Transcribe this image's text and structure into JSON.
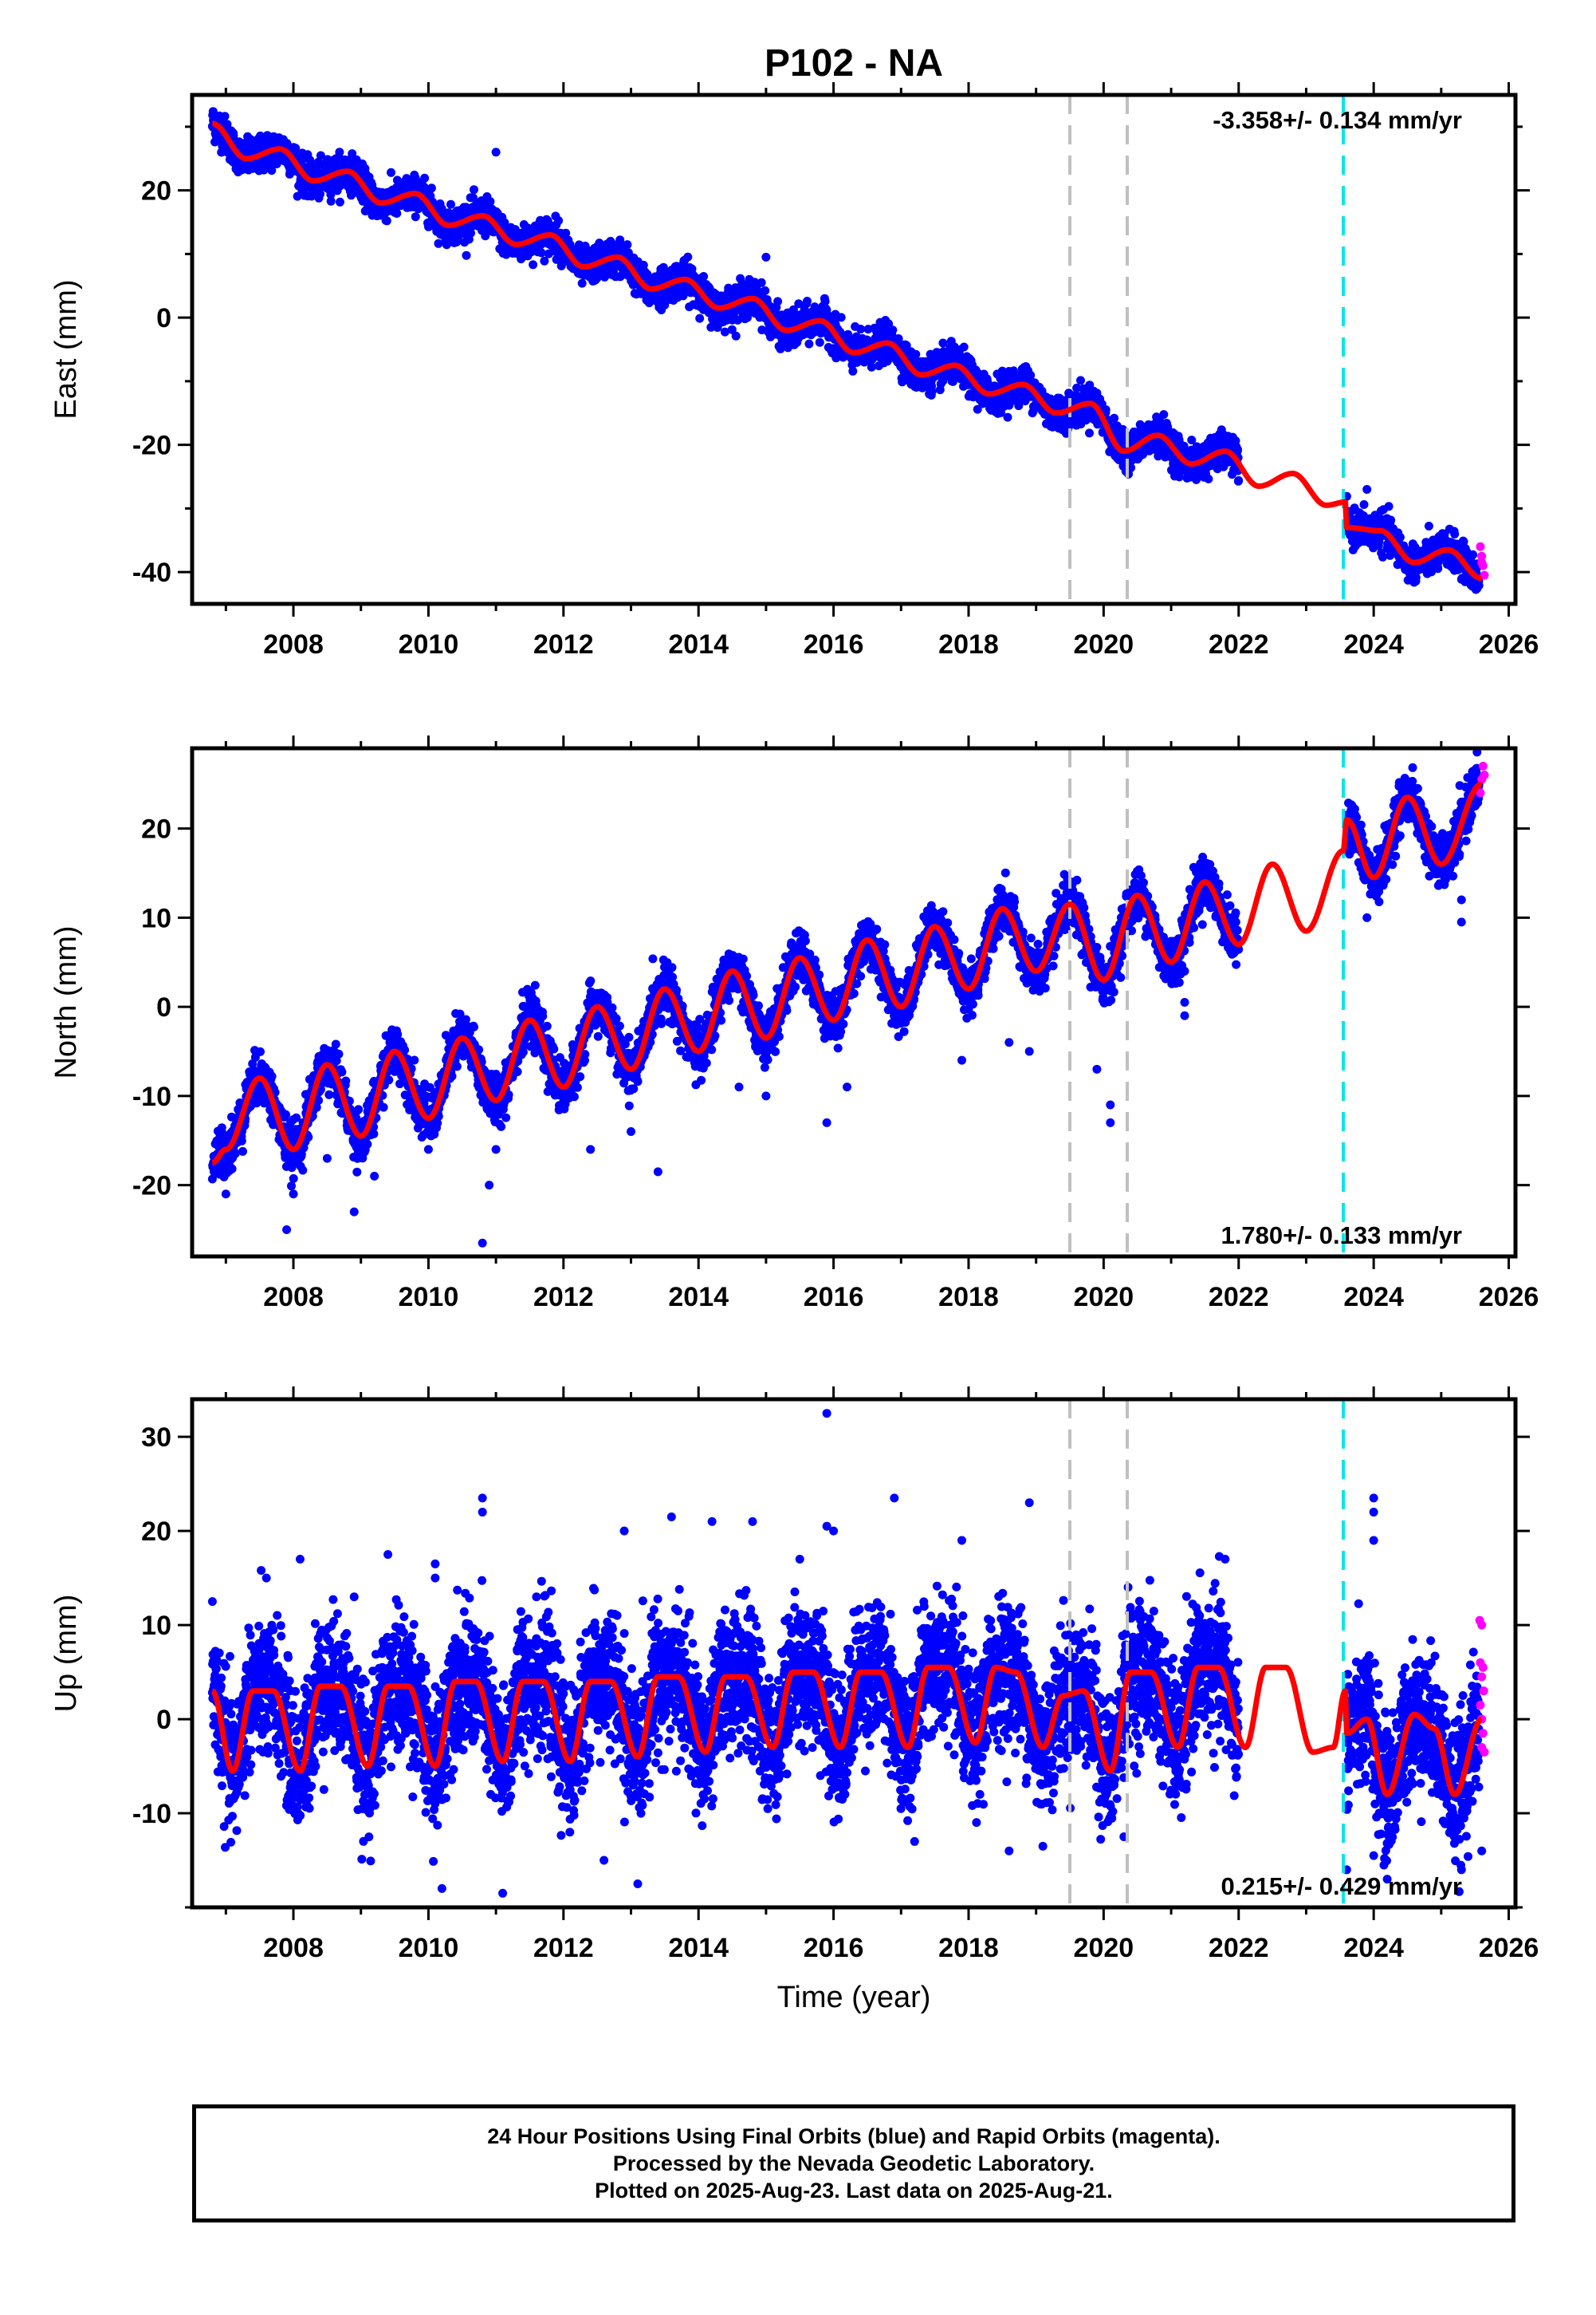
{
  "title": "P102 - NA",
  "colors": {
    "final_orbits": "#0000ff",
    "rapid_orbits": "#ff00ff",
    "model": "#ff0000",
    "gray_marker": "#c0c0c0",
    "cyan_marker": "#00e5ee",
    "frame": "#000000"
  },
  "chart_data": [
    {
      "type": "scatter",
      "ylabel": "East (mm)",
      "xlabel": "",
      "xlim": [
        2006.5,
        2026.1
      ],
      "ylim": [
        -45,
        35
      ],
      "x_ticks": [
        2008,
        2010,
        2012,
        2014,
        2016,
        2018,
        2020,
        2022,
        2024,
        2026
      ],
      "y_ticks": [
        -40,
        -20,
        0,
        20
      ],
      "rate_text": "-3.358+/- 0.134 mm/yr",
      "rate_position": "top-right",
      "grid": false,
      "series": [
        {
          "model": {
            "x": [
              2006.8,
              2007.3,
              2007.8,
              2008.3,
              2008.8,
              2009.3,
              2009.8,
              2010.3,
              2010.8,
              2011.3,
              2011.8,
              2012.3,
              2012.8,
              2013.3,
              2013.8,
              2014.3,
              2014.8,
              2015.3,
              2015.8,
              2016.3,
              2016.8,
              2017.3,
              2017.8,
              2018.3,
              2018.8,
              2019.3,
              2019.8,
              2020.3,
              2020.8,
              2021.3,
              2021.8,
              2022.3,
              2022.8,
              2023.3,
              2023.58,
              2023.6,
              2024.1,
              2024.6,
              2025.1,
              2025.6
            ],
            "y": [
              30.5,
              25.0,
              26.5,
              21.5,
              23.0,
              18.0,
              19.5,
              14.5,
              16.0,
              11.5,
              13.0,
              8.0,
              9.5,
              4.5,
              6.0,
              1.5,
              3.0,
              -2.0,
              -0.5,
              -5.5,
              -4.0,
              -9.0,
              -7.5,
              -12.0,
              -10.5,
              -15.0,
              -13.5,
              -21.0,
              -18.5,
              -23.0,
              -21.0,
              -26.5,
              -24.5,
              -29.5,
              -29.0,
              -33.0,
              -33.5,
              -38.5,
              -36.5,
              -41.0
            ]
          },
          "envelope": 2.5,
          "data_end_1": 2022.0,
          "data_start_2": 2023.6,
          "outliers": [
            [
              2011.0,
              26.0
            ],
            [
              2015.0,
              9.5
            ],
            [
              2019.8,
              -13.0
            ],
            [
              2023.9,
              -27.0
            ]
          ],
          "rapid": [
            [
              2025.58,
              -36.0
            ],
            [
              2025.6,
              -37.5
            ],
            [
              2025.62,
              -39.0
            ],
            [
              2025.64,
              -40.5
            ],
            [
              2025.6,
              -38.5
            ]
          ]
        }
      ]
    },
    {
      "type": "scatter",
      "ylabel": "North (mm)",
      "xlabel": "",
      "xlim": [
        2006.5,
        2026.1
      ],
      "ylim": [
        -28,
        29
      ],
      "x_ticks": [
        2008,
        2010,
        2012,
        2014,
        2016,
        2018,
        2020,
        2022,
        2024,
        2026
      ],
      "y_ticks": [
        -20,
        -10,
        0,
        10,
        20
      ],
      "rate_text": "1.780+/- 0.133 mm/yr",
      "rate_position": "bottom-right",
      "grid": false,
      "series": [
        {
          "model": {
            "x": [
              2006.8,
              2007.0,
              2007.5,
              2008.0,
              2008.5,
              2009.0,
              2009.5,
              2010.0,
              2010.5,
              2011.0,
              2011.5,
              2012.0,
              2012.5,
              2013.0,
              2013.5,
              2014.0,
              2014.5,
              2015.0,
              2015.5,
              2016.0,
              2016.5,
              2017.0,
              2017.5,
              2018.0,
              2018.5,
              2019.0,
              2019.5,
              2020.0,
              2020.5,
              2021.0,
              2021.5,
              2022.0,
              2022.5,
              2023.0,
              2023.55,
              2023.6,
              2024.0,
              2024.5,
              2025.0,
              2025.6
            ],
            "y": [
              -17.5,
              -16.0,
              -8.0,
              -16.0,
              -6.5,
              -14.5,
              -5.0,
              -12.5,
              -3.5,
              -10.5,
              -1.5,
              -9.0,
              0.0,
              -7.0,
              2.0,
              -5.0,
              4.0,
              -3.5,
              5.5,
              -1.5,
              7.5,
              0.0,
              9.0,
              2.0,
              11.0,
              4.0,
              11.5,
              3.0,
              12.5,
              5.0,
              14.0,
              7.0,
              16.0,
              8.5,
              17.5,
              21.0,
              14.5,
              23.5,
              16.0,
              25.0
            ]
          },
          "envelope": 2.5,
          "data_end_1": 2022.0,
          "data_start_2": 2023.6,
          "outliers": [
            [
              2007.0,
              -21.0
            ],
            [
              2007.9,
              -25.0
            ],
            [
              2008.0,
              -21.0
            ],
            [
              2008.5,
              -17.0
            ],
            [
              2008.9,
              -23.0
            ],
            [
              2009.2,
              -19.0
            ],
            [
              2010.0,
              -16.0
            ],
            [
              2010.8,
              -26.5
            ],
            [
              2010.9,
              -20.0
            ],
            [
              2011.0,
              -16.0
            ],
            [
              2012.4,
              -16.0
            ],
            [
              2013.0,
              -14.0
            ],
            [
              2013.4,
              -18.5
            ],
            [
              2014.6,
              -9.0
            ],
            [
              2015.0,
              -10.0
            ],
            [
              2015.9,
              -13.0
            ],
            [
              2016.2,
              -9.0
            ],
            [
              2017.9,
              -6.0
            ],
            [
              2018.6,
              -4.0
            ],
            [
              2018.9,
              -5.0
            ],
            [
              2019.9,
              -7.0
            ],
            [
              2020.1,
              -11.0
            ],
            [
              2020.1,
              -13.0
            ],
            [
              2021.2,
              0.5
            ],
            [
              2021.2,
              4.0
            ],
            [
              2021.2,
              -1.0
            ],
            [
              2023.9,
              10.0
            ],
            [
              2024.0,
              13.0
            ],
            [
              2025.3,
              12.0
            ],
            [
              2025.3,
              9.5
            ]
          ],
          "rapid": [
            [
              2025.58,
              24.0
            ],
            [
              2025.6,
              25.5
            ],
            [
              2025.62,
              27.0
            ],
            [
              2025.64,
              26.0
            ]
          ]
        }
      ]
    },
    {
      "type": "scatter",
      "ylabel": "Up (mm)",
      "xlabel": "Time (year)",
      "xlim": [
        2006.5,
        2026.1
      ],
      "ylim": [
        -20,
        34
      ],
      "x_ticks": [
        2008,
        2010,
        2012,
        2014,
        2016,
        2018,
        2020,
        2022,
        2024,
        2026
      ],
      "y_ticks": [
        -10,
        0,
        10,
        20,
        30
      ],
      "rate_text": "0.215+/- 0.429 mm/yr",
      "rate_position": "bottom-right",
      "grid": false,
      "series": [
        {
          "model": {
            "x": [
              2006.8,
              2007.1,
              2007.4,
              2007.7,
              2008.1,
              2008.4,
              2008.7,
              2009.1,
              2009.4,
              2009.7,
              2010.1,
              2010.4,
              2010.7,
              2011.1,
              2011.4,
              2011.7,
              2012.1,
              2012.4,
              2012.7,
              2013.1,
              2013.4,
              2013.7,
              2014.1,
              2014.4,
              2014.7,
              2015.1,
              2015.4,
              2015.7,
              2016.1,
              2016.4,
              2016.7,
              2017.1,
              2017.4,
              2017.7,
              2018.1,
              2018.4,
              2018.7,
              2019.1,
              2019.4,
              2019.7,
              2020.1,
              2020.4,
              2020.7,
              2021.1,
              2021.4,
              2021.7,
              2022.1,
              2022.4,
              2022.7,
              2023.1,
              2023.4,
              2023.58,
              2023.6,
              2023.9,
              2024.2,
              2024.6,
              2024.9,
              2025.2,
              2025.6
            ],
            "y": [
              3.0,
              -5.5,
              3.0,
              3.0,
              -5.5,
              3.5,
              3.5,
              -5.0,
              3.5,
              3.5,
              -5.0,
              4.0,
              4.0,
              -4.5,
              4.0,
              4.0,
              -4.5,
              4.0,
              4.0,
              -4.0,
              4.5,
              4.5,
              -3.5,
              4.5,
              4.5,
              -3.0,
              5.0,
              5.0,
              -3.0,
              5.0,
              5.0,
              -3.0,
              5.5,
              5.5,
              -2.5,
              5.5,
              5.0,
              -3.0,
              2.5,
              3.0,
              -5.5,
              5.0,
              5.0,
              -3.0,
              5.5,
              5.5,
              -3.0,
              5.5,
              5.5,
              -3.5,
              -3.0,
              3.0,
              -1.5,
              0.0,
              -8.0,
              0.5,
              -1.0,
              -8.0,
              0.0
            ]
          },
          "envelope": 6.5,
          "data_end_1": 2022.0,
          "data_start_2": 2023.6,
          "outliers": [
            [
              2006.8,
              12.5
            ],
            [
              2007.6,
              15.0
            ],
            [
              2008.1,
              17.0
            ],
            [
              2008.9,
              13.0
            ],
            [
              2009.4,
              17.5
            ],
            [
              2010.1,
              16.5
            ],
            [
              2010.1,
              15.0
            ],
            [
              2010.2,
              -18.0
            ],
            [
              2010.8,
              23.5
            ],
            [
              2010.8,
              22.0
            ],
            [
              2011.1,
              -18.5
            ],
            [
              2011.6,
              13.0
            ],
            [
              2012.6,
              -15.0
            ],
            [
              2012.9,
              20.0
            ],
            [
              2013.1,
              -17.5
            ],
            [
              2013.6,
              21.5
            ],
            [
              2014.2,
              21.0
            ],
            [
              2014.8,
              21.0
            ],
            [
              2015.5,
              17.0
            ],
            [
              2015.9,
              32.5
            ],
            [
              2015.9,
              20.5
            ],
            [
              2016.0,
              20.0
            ],
            [
              2016.9,
              23.5
            ],
            [
              2017.2,
              -13.0
            ],
            [
              2017.9,
              19.0
            ],
            [
              2018.6,
              -14.0
            ],
            [
              2018.9,
              23.0
            ],
            [
              2019.1,
              -13.5
            ],
            [
              2020.3,
              -12.5
            ],
            [
              2021.8,
              17.0
            ],
            [
              2023.6,
              -16.0
            ],
            [
              2024.0,
              23.5
            ],
            [
              2024.0,
              22.0
            ],
            [
              2024.0,
              19.0
            ],
            [
              2024.2,
              -17.0
            ],
            [
              2024.0,
              -14.5
            ],
            [
              2025.3,
              -16.0
            ],
            [
              2025.6,
              -14.0
            ]
          ],
          "rapid": [
            [
              2025.57,
              10.5
            ],
            [
              2025.6,
              10.0
            ],
            [
              2025.58,
              6.0
            ],
            [
              2025.62,
              5.5
            ],
            [
              2025.6,
              4.5
            ],
            [
              2025.63,
              3.0
            ],
            [
              2025.58,
              1.5
            ],
            [
              2025.6,
              0.0
            ],
            [
              2025.62,
              -1.5
            ],
            [
              2025.6,
              -3.0
            ],
            [
              2025.64,
              -3.5
            ]
          ]
        }
      ]
    }
  ],
  "vertical_markers": {
    "gray": [
      2019.5,
      2020.35
    ],
    "cyan": [
      2023.55
    ]
  },
  "footer": {
    "line1": "24 Hour Positions Using Final Orbits (blue) and Rapid Orbits (magenta).",
    "line2": "Processed by the Nevada Geodetic Laboratory.",
    "line3": "Plotted on 2025-Aug-23. Last data on 2025-Aug-21."
  }
}
